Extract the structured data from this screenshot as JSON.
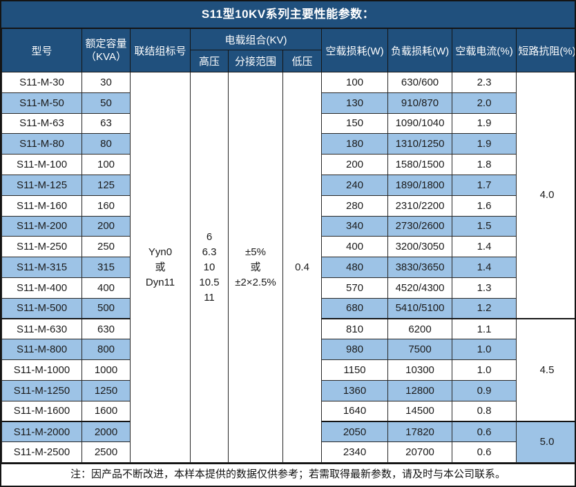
{
  "title": "S11型10KV系列主要性能参数：",
  "header": {
    "model": "型号",
    "capacity_line1": "额定容量",
    "capacity_line2": "（KVA）",
    "vector_group": "联结组标号",
    "voltage_combo": "电载组合(KV)",
    "hv": "高压",
    "tap_range": "分接范围",
    "lv": "低压",
    "no_load_loss": "空载损耗(W)",
    "load_loss": "负载损耗(W)",
    "no_load_current": "空载电流(%)",
    "impedance": "短路抗阻(%)"
  },
  "merged": {
    "vector_group_lines": [
      "Yyn0",
      "或",
      "Dyn11"
    ],
    "hv_lines": [
      "6",
      "6.3",
      "10",
      "10.5",
      "11"
    ],
    "tap_range_lines": [
      "±5%",
      "或",
      "±2×2.5%"
    ],
    "lv_value": "0.4"
  },
  "rows": [
    {
      "model": "S11-M-30",
      "capacity": "30",
      "no_load_loss": "100",
      "load_loss": "630/600",
      "no_load_current": "2.3"
    },
    {
      "model": "S11-M-50",
      "capacity": "50",
      "no_load_loss": "130",
      "load_loss": "910/870",
      "no_load_current": "2.0"
    },
    {
      "model": "S11-M-63",
      "capacity": "63",
      "no_load_loss": "150",
      "load_loss": "1090/1040",
      "no_load_current": "1.9"
    },
    {
      "model": "S11-M-80",
      "capacity": "80",
      "no_load_loss": "180",
      "load_loss": "1310/1250",
      "no_load_current": "1.9"
    },
    {
      "model": "S11-M-100",
      "capacity": "100",
      "no_load_loss": "200",
      "load_loss": "1580/1500",
      "no_load_current": "1.8"
    },
    {
      "model": "S11-M-125",
      "capacity": "125",
      "no_load_loss": "240",
      "load_loss": "1890/1800",
      "no_load_current": "1.7"
    },
    {
      "model": "S11-M-160",
      "capacity": "160",
      "no_load_loss": "280",
      "load_loss": "2310/2200",
      "no_load_current": "1.6"
    },
    {
      "model": "S11-M-200",
      "capacity": "200",
      "no_load_loss": "340",
      "load_loss": "2730/2600",
      "no_load_current": "1.5"
    },
    {
      "model": "S11-M-250",
      "capacity": "250",
      "no_load_loss": "400",
      "load_loss": "3200/3050",
      "no_load_current": "1.4"
    },
    {
      "model": "S11-M-315",
      "capacity": "315",
      "no_load_loss": "480",
      "load_loss": "3830/3650",
      "no_load_current": "1.4"
    },
    {
      "model": "S11-M-400",
      "capacity": "400",
      "no_load_loss": "570",
      "load_loss": "4520/4300",
      "no_load_current": "1.3"
    },
    {
      "model": "S11-M-500",
      "capacity": "500",
      "no_load_loss": "680",
      "load_loss": "5410/5100",
      "no_load_current": "1.2"
    },
    {
      "model": "S11-M-630",
      "capacity": "630",
      "no_load_loss": "810",
      "load_loss": "6200",
      "no_load_current": "1.1"
    },
    {
      "model": "S11-M-800",
      "capacity": "800",
      "no_load_loss": "980",
      "load_loss": "7500",
      "no_load_current": "1.0"
    },
    {
      "model": "S11-M-1000",
      "capacity": "1000",
      "no_load_loss": "1150",
      "load_loss": "10300",
      "no_load_current": "1.0"
    },
    {
      "model": "S11-M-1250",
      "capacity": "1250",
      "no_load_loss": "1360",
      "load_loss": "12800",
      "no_load_current": "0.9"
    },
    {
      "model": "S11-M-1600",
      "capacity": "1600",
      "no_load_loss": "1640",
      "load_loss": "14500",
      "no_load_current": "0.8"
    },
    {
      "model": "S11-M-2000",
      "capacity": "2000",
      "no_load_loss": "2050",
      "load_loss": "17820",
      "no_load_current": "0.6"
    },
    {
      "model": "S11-M-2500",
      "capacity": "2500",
      "no_load_loss": "2340",
      "load_loss": "20700",
      "no_load_current": "0.6"
    }
  ],
  "impedance_groups": [
    {
      "value": "4.0",
      "start": 0,
      "span": 12
    },
    {
      "value": "4.5",
      "start": 12,
      "span": 5
    },
    {
      "value": "5.0",
      "start": 17,
      "span": 2
    }
  ],
  "note": "注：因产品不断改进，本样本提供的数据仅供参考；若需取得最新参数，请及时与本公司联系。",
  "colors": {
    "header_bg": "#20507D",
    "alt_row_bg": "#9DC3E6",
    "border": "#262626",
    "header_text": "#FFFFFF",
    "body_text": "#1A1A1A"
  }
}
